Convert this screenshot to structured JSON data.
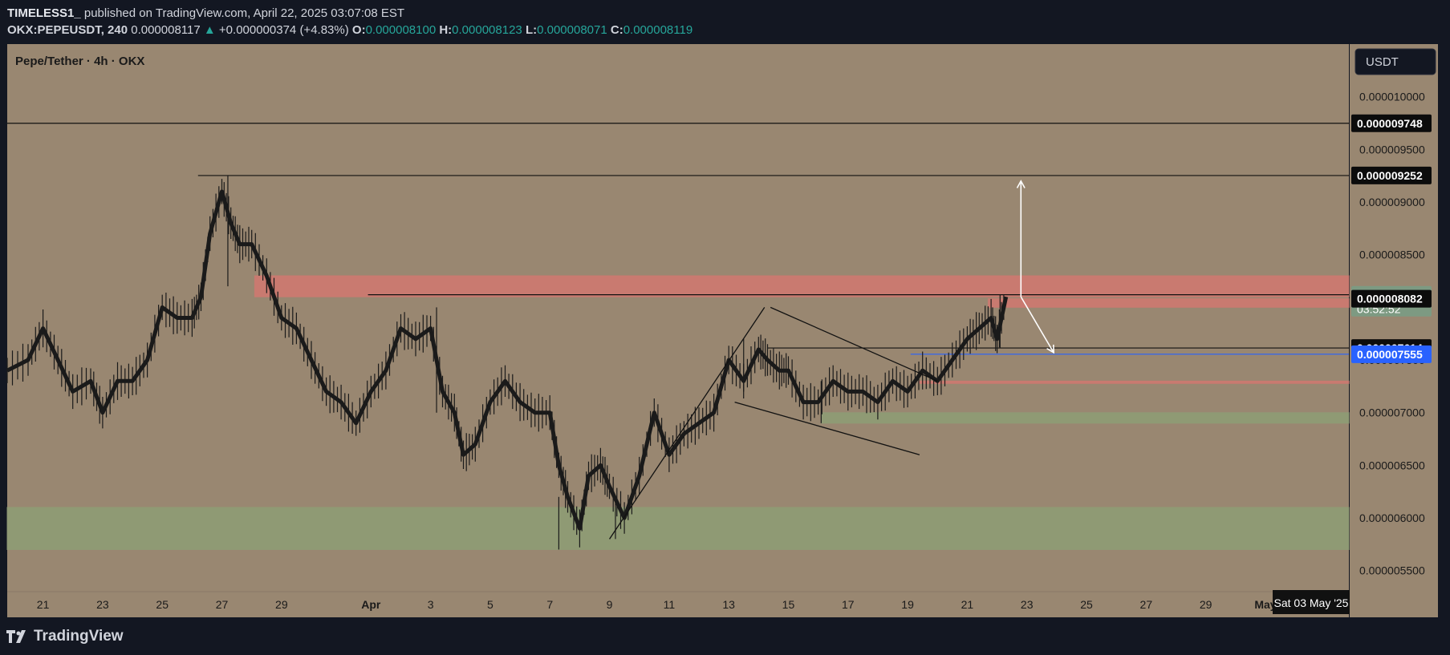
{
  "header": {
    "publisher": "TIMELESS1_",
    "published_text": "published on TradingView.com, April 22, 2025 03:07:08 EST",
    "symbol": "OKX:PEPEUSDT, 240",
    "last": "0.000008117",
    "change": "+0.000000374 (+4.83%)",
    "o_label": "O:",
    "o_value": "0.000008100",
    "h_label": "H:",
    "h_value": "0.000008123",
    "l_label": "L:",
    "l_value": "0.000008071",
    "c_label": "C:",
    "c_value": "0.000008119"
  },
  "pane_title": "Pepe/Tether · 4h · OKX",
  "currency_button": "USDT",
  "footer": {
    "brand": "TradingView"
  },
  "colors": {
    "background": "#998771",
    "frame": "#131722",
    "resistance_zone": "#c97a70",
    "support_zone": "#8f9a74",
    "candle": "#1a1a1a",
    "up_accent": "#26a69a",
    "blue_label": "#2962ff",
    "current_label": "#7d9a82"
  },
  "chart_data": {
    "type": "candlestick",
    "title": "Pepe/Tether · 4h · OKX",
    "y_range": [
      5.3e-06,
      1.05e-05
    ],
    "y_ticks": [
      "0.000010000",
      "0.000009500",
      "0.000009000",
      "0.000008500",
      "0.000008000",
      "0.000007500",
      "0.000007000",
      "0.000006500",
      "0.000006000",
      "0.000005500"
    ],
    "y_tick_values": [
      1e-05,
      9.5e-06,
      9e-06,
      8.5e-06,
      8e-06,
      7.5e-06,
      7e-06,
      6.5e-06,
      6e-06,
      5.5e-06
    ],
    "x_range_days_from_mar20": [
      -0.2,
      44.8
    ],
    "x_ticks": [
      {
        "label": "21",
        "day": 1
      },
      {
        "label": "23",
        "day": 3
      },
      {
        "label": "25",
        "day": 5
      },
      {
        "label": "27",
        "day": 7
      },
      {
        "label": "29",
        "day": 9
      },
      {
        "label": "Apr",
        "day": 12
      },
      {
        "label": "3",
        "day": 14
      },
      {
        "label": "5",
        "day": 16
      },
      {
        "label": "7",
        "day": 18
      },
      {
        "label": "9",
        "day": 20
      },
      {
        "label": "11",
        "day": 22
      },
      {
        "label": "13",
        "day": 24
      },
      {
        "label": "15",
        "day": 26
      },
      {
        "label": "17",
        "day": 28
      },
      {
        "label": "19",
        "day": 30
      },
      {
        "label": "21",
        "day": 32
      },
      {
        "label": "23",
        "day": 34
      },
      {
        "label": "25",
        "day": 36
      },
      {
        "label": "27",
        "day": 38
      },
      {
        "label": "29",
        "day": 40
      },
      {
        "label": "May",
        "day": 42
      }
    ],
    "crosshair_date_label": "Sat 03 May '25",
    "price_labels": [
      {
        "text": "0.000009748",
        "value": 9.748e-06,
        "style": "black"
      },
      {
        "text": "0.000009252",
        "value": 9.252e-06,
        "style": "black"
      },
      {
        "text": "0.000008119",
        "value": 8.119e-06,
        "style": "current",
        "sub": "03:52:52"
      },
      {
        "text": "0.000008082",
        "value": 8.082e-06,
        "style": "black"
      },
      {
        "text": "0.000007614",
        "value": 7.614e-06,
        "style": "black"
      },
      {
        "text": "0.000007555",
        "value": 7.555e-06,
        "style": "blue"
      }
    ],
    "path_points": [
      [
        -0.2,
        7.4e-06
      ],
      [
        0.5,
        7.5e-06
      ],
      [
        1,
        7.8e-06
      ],
      [
        1.5,
        7.5e-06
      ],
      [
        2,
        7.2e-06
      ],
      [
        2.6,
        7.3e-06
      ],
      [
        3,
        7e-06
      ],
      [
        3.5,
        7.3e-06
      ],
      [
        4,
        7.3e-06
      ],
      [
        4.5,
        7.5e-06
      ],
      [
        5,
        8e-06
      ],
      [
        5.5,
        7.9e-06
      ],
      [
        6,
        7.9e-06
      ],
      [
        6.3,
        8.1e-06
      ],
      [
        6.6,
        8.7e-06
      ],
      [
        7,
        9.1e-06
      ],
      [
        7.3,
        8.8e-06
      ],
      [
        7.6,
        8.6e-06
      ],
      [
        8,
        8.6e-06
      ],
      [
        8.5,
        8.3e-06
      ],
      [
        9,
        7.9e-06
      ],
      [
        9.5,
        7.8e-06
      ],
      [
        10,
        7.5e-06
      ],
      [
        10.5,
        7.2e-06
      ],
      [
        11,
        7.1e-06
      ],
      [
        11.5,
        6.9e-06
      ],
      [
        12,
        7.2e-06
      ],
      [
        12.5,
        7.4e-06
      ],
      [
        13,
        7.8e-06
      ],
      [
        13.5,
        7.7e-06
      ],
      [
        14,
        7.8e-06
      ],
      [
        14.4,
        7.2e-06
      ],
      [
        14.8,
        7e-06
      ],
      [
        15.1,
        6.6e-06
      ],
      [
        15.5,
        6.7e-06
      ],
      [
        16,
        7.1e-06
      ],
      [
        16.5,
        7.3e-06
      ],
      [
        17,
        7.1e-06
      ],
      [
        17.5,
        7e-06
      ],
      [
        18,
        7e-06
      ],
      [
        18.3,
        6.5e-06
      ],
      [
        18.6,
        6.2e-06
      ],
      [
        19,
        5.9e-06
      ],
      [
        19.3,
        6.4e-06
      ],
      [
        19.7,
        6.5e-06
      ],
      [
        20,
        6.3e-06
      ],
      [
        20.5,
        6e-06
      ],
      [
        21,
        6.4e-06
      ],
      [
        21.5,
        7e-06
      ],
      [
        22,
        6.6e-06
      ],
      [
        22.5,
        6.8e-06
      ],
      [
        23,
        6.9e-06
      ],
      [
        23.5,
        7e-06
      ],
      [
        24,
        7.5e-06
      ],
      [
        24.5,
        7.3e-06
      ],
      [
        25,
        7.6e-06
      ],
      [
        25.3,
        7.5e-06
      ],
      [
        25.7,
        7.4e-06
      ],
      [
        26,
        7.4e-06
      ],
      [
        26.5,
        7.1e-06
      ],
      [
        27,
        7.1e-06
      ],
      [
        27.5,
        7.3e-06
      ],
      [
        28,
        7.2e-06
      ],
      [
        28.5,
        7.2e-06
      ],
      [
        29,
        7.1e-06
      ],
      [
        29.5,
        7.3e-06
      ],
      [
        30,
        7.2e-06
      ],
      [
        30.5,
        7.4e-06
      ],
      [
        31,
        7.3e-06
      ],
      [
        31.5,
        7.5e-06
      ],
      [
        32,
        7.7e-06
      ],
      [
        32.4,
        7.8e-06
      ],
      [
        32.8,
        7.9e-06
      ],
      [
        33,
        7.7e-06
      ],
      [
        33.3,
        8.1e-06
      ]
    ],
    "highlights": [
      {
        "day": 7.2,
        "high": 9.252e-06,
        "low": 8.2e-06
      },
      {
        "day": 14.2,
        "high": 8e-06,
        "low": 7e-06
      },
      {
        "day": 18.3,
        "high": 6.2e-06,
        "low": 5.7e-06
      },
      {
        "day": 20.2,
        "high": 6.2e-06,
        "low": 5.8e-06
      },
      {
        "day": 24.5,
        "high": 7.7e-06,
        "low": 7.2e-06
      },
      {
        "day": 27.1,
        "high": 7.3e-06,
        "low": 6.9e-06
      },
      {
        "day": 33.1,
        "high": 8.123e-06,
        "low": 7.614e-06
      }
    ],
    "zones": [
      {
        "kind": "resistance",
        "from_day": 8.1,
        "to_day": 44.8,
        "top": 8.3e-06,
        "bottom": 8.1e-06
      },
      {
        "kind": "support",
        "from_day": -0.2,
        "to_day": 44.8,
        "top": 6.1e-06,
        "bottom": 5.7e-06
      },
      {
        "kind": "support",
        "from_day": 27.1,
        "to_day": 44.8,
        "top": 7e-06,
        "bottom": 6.9e-06
      },
      {
        "kind": "resistance",
        "from_day": 32.7,
        "to_day": 44.8,
        "top": 8.082e-06,
        "bottom": 8e-06
      },
      {
        "kind": "resistance",
        "from_day": 30.4,
        "to_day": 44.8,
        "top": 7.3e-06,
        "bottom": 7.29e-06
      }
    ],
    "hlines": [
      {
        "from_day": -0.2,
        "to_day": 44.8,
        "value": 9.748e-06,
        "color": "#111111"
      },
      {
        "from_day": 6.2,
        "to_day": 44.8,
        "value": 9.252e-06,
        "color": "#111111"
      },
      {
        "from_day": 11.9,
        "to_day": 44.8,
        "value": 8.12e-06,
        "color": "#111111"
      },
      {
        "from_day": 25.3,
        "to_day": 44.8,
        "value": 7.614e-06,
        "color": "#111111"
      },
      {
        "from_day": 30.1,
        "to_day": 44.8,
        "value": 7.555e-06,
        "color": "#2962ff"
      }
    ],
    "trendlines": [
      {
        "from": [
          20,
          5.8e-06
        ],
        "to": [
          25.2,
          8e-06
        ]
      },
      {
        "from": [
          24.2,
          7.1e-06
        ],
        "to": [
          30.4,
          6.6e-06
        ]
      },
      {
        "from": [
          25.4,
          8e-06
        ],
        "to": [
          31,
          7.3e-06
        ]
      }
    ],
    "arrows": [
      {
        "from": [
          33.8,
          8.1e-06
        ],
        "to": [
          33.8,
          9.2e-06
        ]
      },
      {
        "from": [
          33.8,
          8.1e-06
        ],
        "to": [
          34.9,
          7.57e-06
        ]
      }
    ]
  }
}
